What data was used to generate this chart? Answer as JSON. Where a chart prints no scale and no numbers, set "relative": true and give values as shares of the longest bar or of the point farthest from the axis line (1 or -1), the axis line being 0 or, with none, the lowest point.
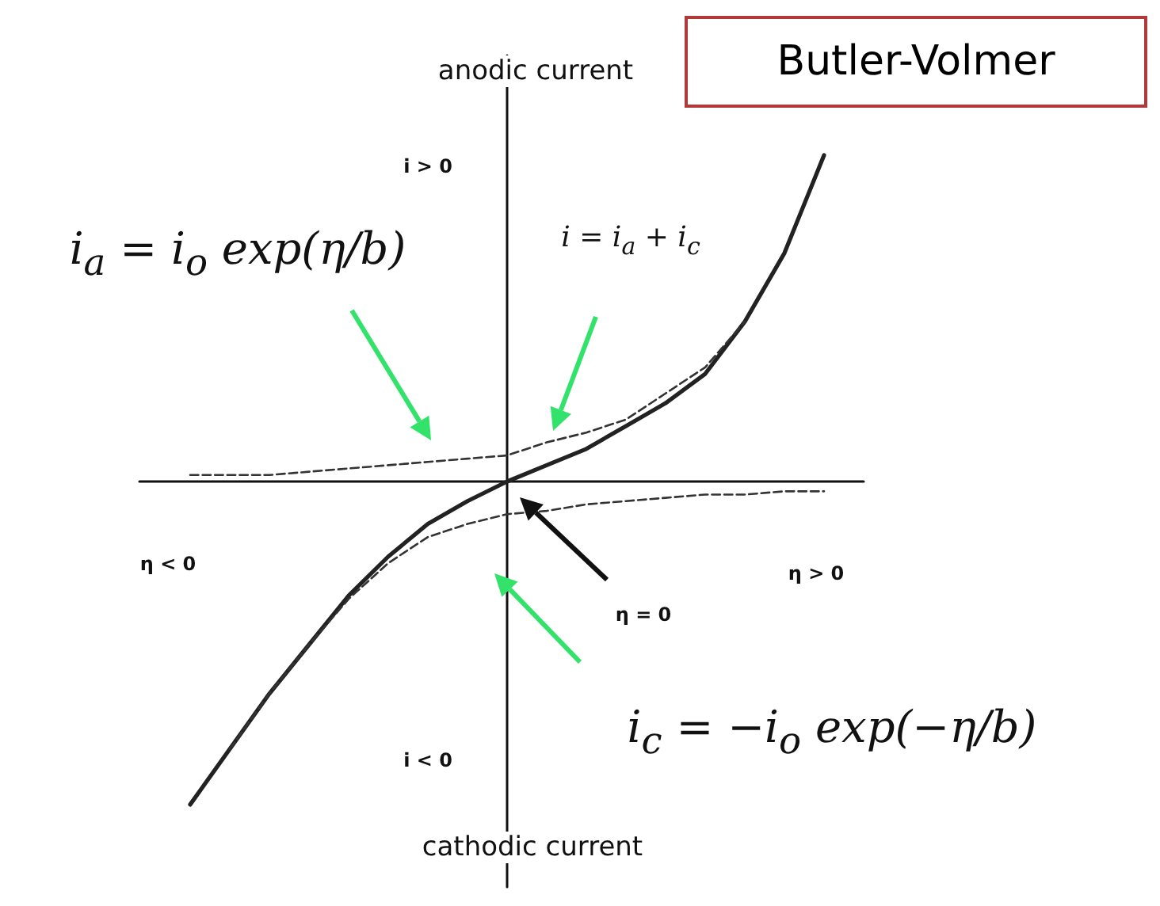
{
  "chart_data": {
    "type": "line",
    "title": "Butler-Volmer",
    "relative": true,
    "categories": [
      null,
      null,
      null,
      null,
      null,
      null,
      null,
      null,
      null,
      null,
      null,
      null,
      null,
      null,
      null,
      null,
      null
    ],
    "series": [
      {
        "color": "#222222",
        "line_style": "solid",
        "values": [
          -0.99,
          -0.82,
          -0.65,
          -0.5,
          -0.35,
          -0.23,
          -0.13,
          -0.06,
          0,
          0.05,
          0.1,
          0.17,
          0.24,
          0.33,
          0.49,
          0.7,
          1
        ]
      },
      {
        "color": "#333333",
        "line_style": "dashed",
        "values": [
          0.02,
          0.02,
          0.02,
          0.03,
          0.04,
          0.05,
          0.06,
          0.07,
          0.08,
          0.12,
          0.15,
          0.19,
          0.27,
          0.35,
          0.49,
          null,
          null
        ]
      },
      {
        "color": "#333333",
        "line_style": "dashed",
        "values": [
          null,
          -0.82,
          -0.65,
          -0.5,
          -0.36,
          -0.25,
          -0.17,
          -0.13,
          -0.1,
          -0.09,
          -0.07,
          -0.06,
          -0.05,
          -0.04,
          -0.04,
          -0.03,
          -0.03
        ]
      }
    ],
    "annotations": [
      "anodic current",
      "i > 0",
      "i = i$_{a}$ + i$_{c}$",
      "i$_{a}$ = i$_{o}$ exp(η/b)",
      "η < 0",
      "η > 0",
      "η = 0",
      "i$_{c}$ = −i$_{o}$ exp(−η/b)",
      "i < 0",
      "cathodic current"
    ],
    "grid": false,
    "marker": "none"
  }
}
